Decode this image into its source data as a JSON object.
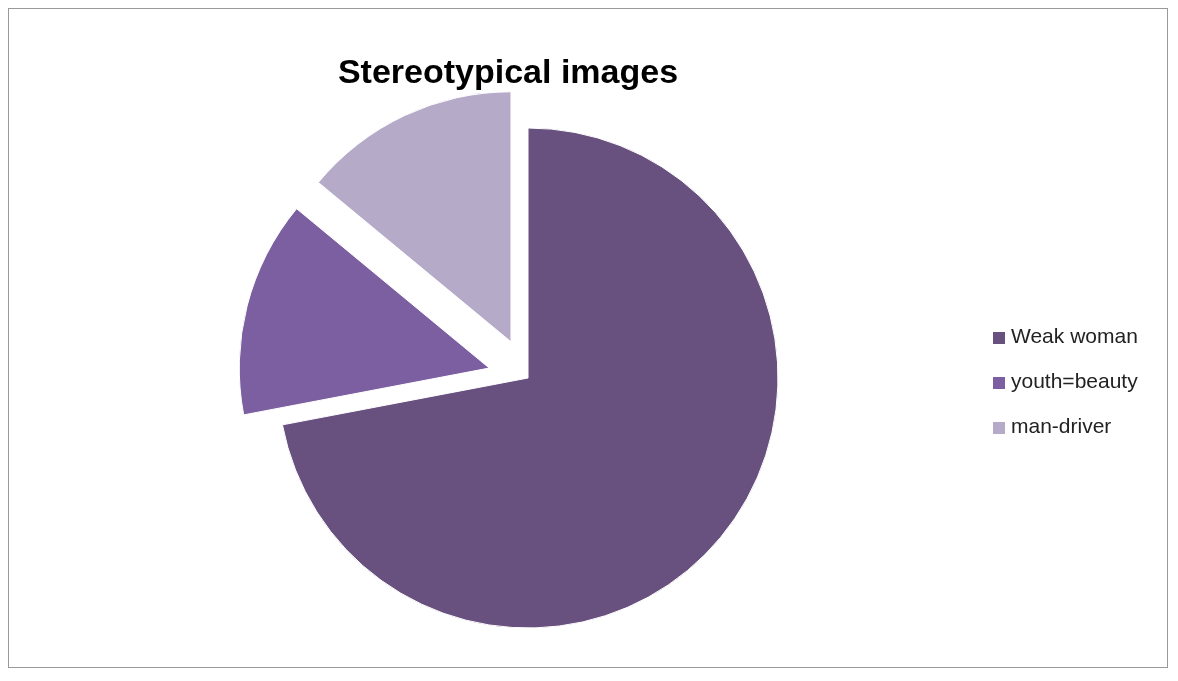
{
  "chart_data": {
    "type": "pie",
    "title": "Stereotypical images",
    "categories": [
      "Weak woman",
      "youth=beauty",
      "man-driver"
    ],
    "values": [
      72,
      14,
      14
    ],
    "colors": [
      "#68507f",
      "#7b5fa0",
      "#b5aac8"
    ],
    "legend": "right"
  }
}
